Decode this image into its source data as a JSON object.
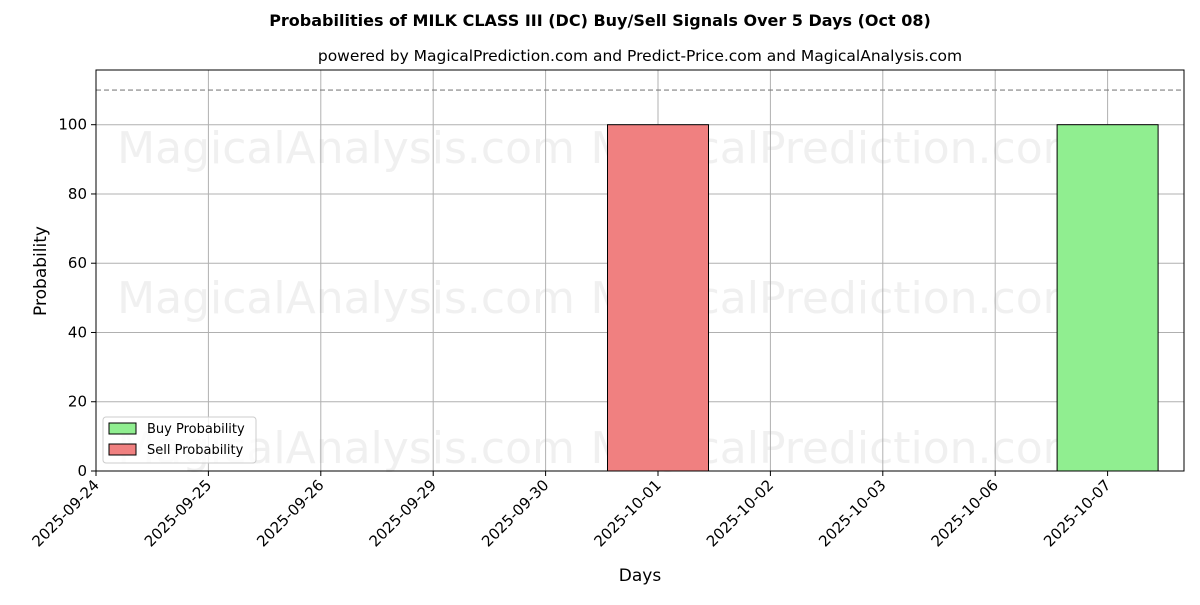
{
  "chart_data": {
    "type": "bar",
    "title": "Probabilities of MILK CLASS III (DC) Buy/Sell Signals Over 5 Days (Oct 08)",
    "subtitle": "powered by MagicalPrediction.com and Predict-Price.com and MagicalAnalysis.com",
    "xlabel": "Days",
    "ylabel": "Probability",
    "categories": [
      "2025-09-24",
      "2025-09-25",
      "2025-09-26",
      "2025-09-29",
      "2025-09-30",
      "2025-10-01",
      "2025-10-02",
      "2025-10-03",
      "2025-10-06",
      "2025-10-07"
    ],
    "series": [
      {
        "name": "Buy Probability",
        "color": "#90ee90",
        "values": [
          0,
          0,
          0,
          0,
          0,
          0,
          0,
          0,
          0,
          100
        ]
      },
      {
        "name": "Sell Probability",
        "color": "#f08080",
        "values": [
          0,
          0,
          0,
          0,
          0,
          100,
          0,
          0,
          0,
          0
        ]
      }
    ],
    "ylim": [
      0,
      115
    ],
    "yticks": [
      0,
      20,
      40,
      60,
      80,
      100
    ],
    "reference_line": {
      "y": 110,
      "style": "dashed",
      "color": "#808080"
    },
    "grid": true,
    "legend_position": "lower-left"
  },
  "watermarks": [
    "MagicalAnalysis.com",
    "MagicalPrediction.com",
    "MagicalAnalysis.com",
    "MagicalPrediction.com",
    "MagicalAnalysis.com",
    "MagicalPrediction.com"
  ]
}
